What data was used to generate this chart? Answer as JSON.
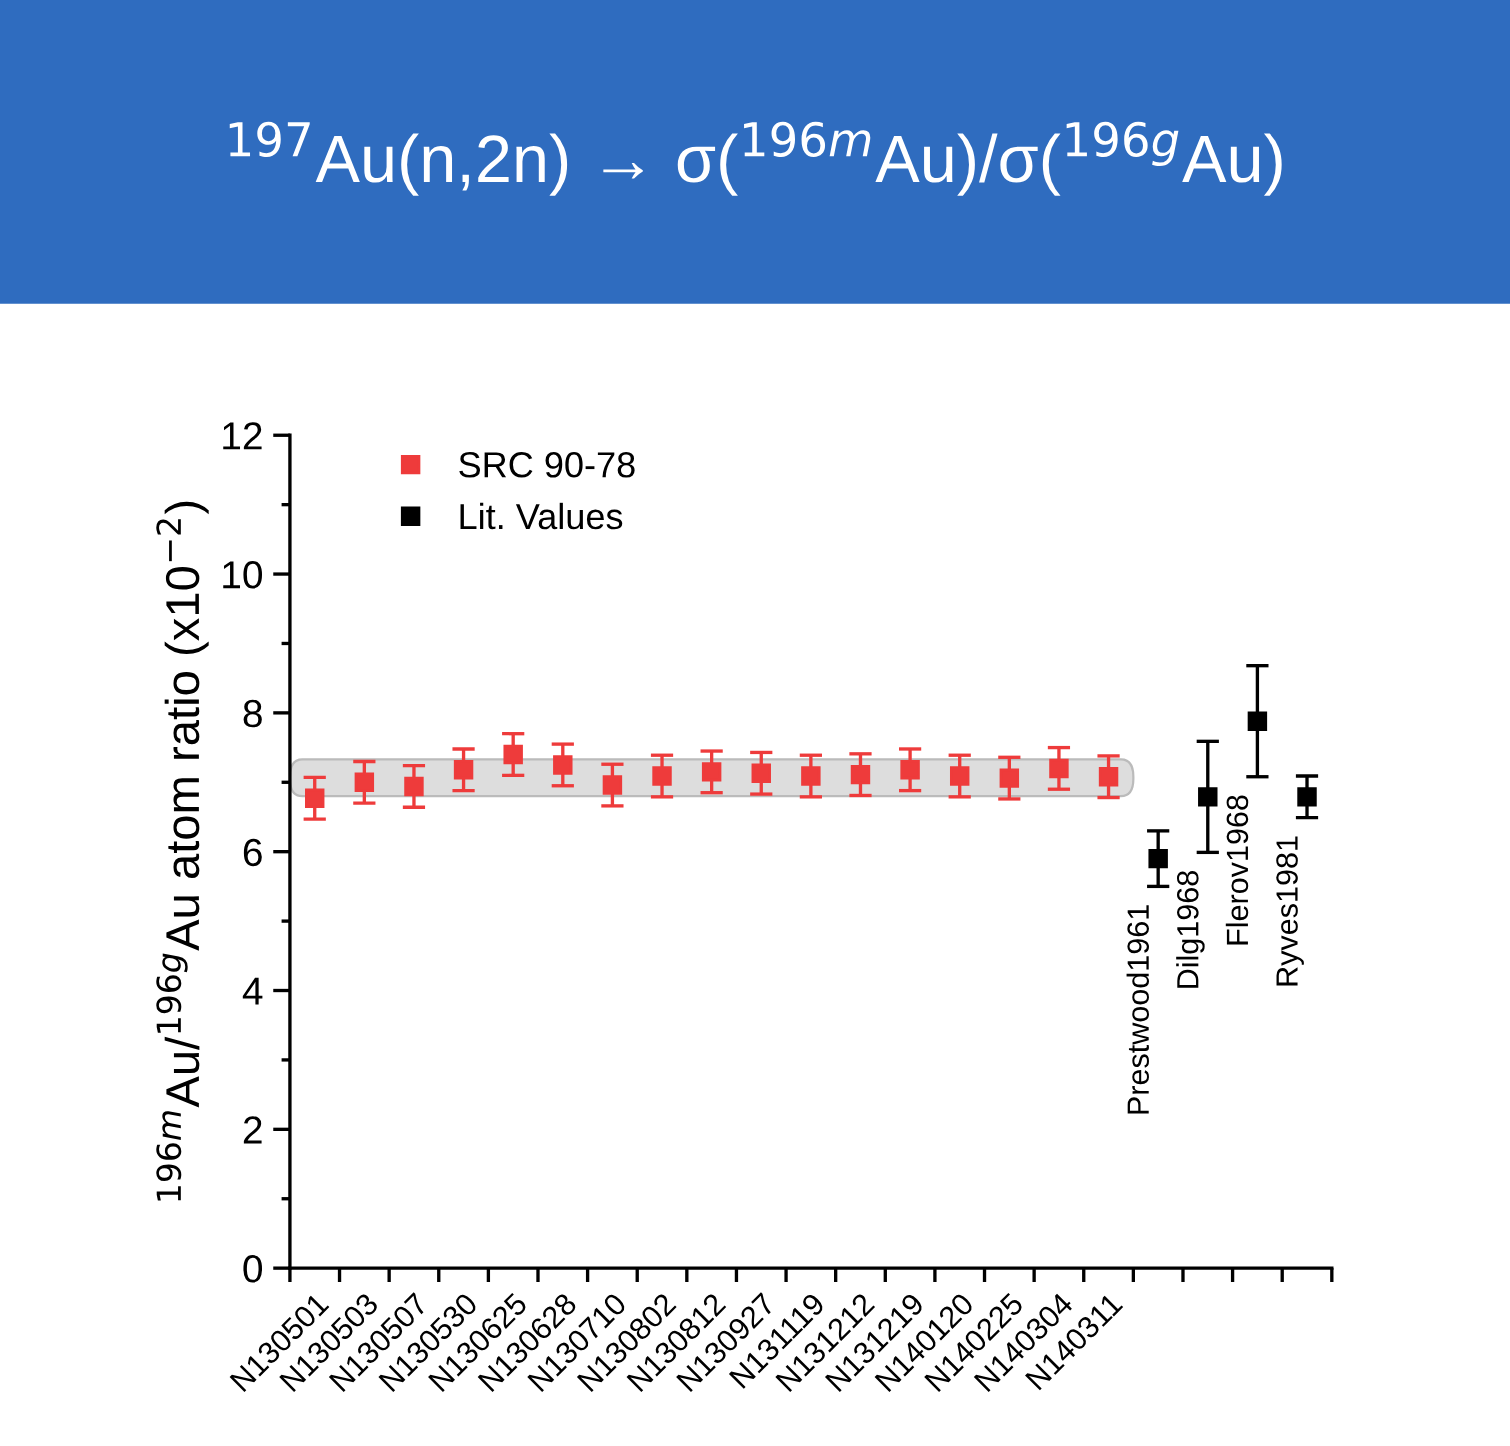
{
  "chart_data": {
    "type": "scatter",
    "title": "$^{197}$Au(n,2n) → σ($^{196m}$Au)/σ($^{196g}$Au)",
    "ylabel": "$^{196m}$Au/$^{196g}$Au atom ratio (x10$^{−2}$)",
    "categories": [
      "N130501",
      "N130503",
      "N130507",
      "N130530",
      "N130625",
      "N130628",
      "N130710",
      "N130802",
      "N130812",
      "N130927",
      "N131119",
      "N131212",
      "N131219",
      "N140120",
      "N140225",
      "N140304",
      "N140311",
      "Prestwood1961",
      "Dilg1968",
      "Flerov1968",
      "Ryves1981"
    ],
    "series": [
      {
        "name": "SRC 90-78",
        "color": "#ee3b3b",
        "values": [
          6.77,
          7.0,
          6.94,
          7.18,
          7.4,
          7.25,
          6.96,
          7.09,
          7.15,
          7.13,
          7.09,
          7.11,
          7.18,
          7.09,
          7.06,
          7.2,
          7.08,
          null,
          null,
          null,
          null
        ],
        "errors": [
          0.3,
          0.3,
          0.3,
          0.3,
          0.3,
          0.3,
          0.3,
          0.3,
          0.3,
          0.3,
          0.3,
          0.3,
          0.3,
          0.3,
          0.3,
          0.3,
          0.3,
          null,
          null,
          null,
          null
        ]
      },
      {
        "name": "Lit. Values",
        "color": "#000000",
        "values": [
          null,
          null,
          null,
          null,
          null,
          null,
          null,
          null,
          null,
          null,
          null,
          null,
          null,
          null,
          null,
          null,
          null,
          5.9,
          6.79,
          7.88,
          6.79
        ],
        "errors": [
          null,
          null,
          null,
          null,
          null,
          null,
          null,
          null,
          null,
          null,
          null,
          null,
          null,
          null,
          null,
          null,
          null,
          0.4,
          0.8,
          0.8,
          0.3
        ]
      }
    ],
    "bands": [
      {
        "axis": "y",
        "from": 6.8,
        "to": 7.33,
        "color": "#dddddd"
      }
    ],
    "ylim": [
      0,
      12
    ],
    "yticks": [
      0,
      2,
      4,
      6,
      8,
      10,
      12
    ],
    "marker": "square",
    "legend": "top left",
    "grid": false
  }
}
